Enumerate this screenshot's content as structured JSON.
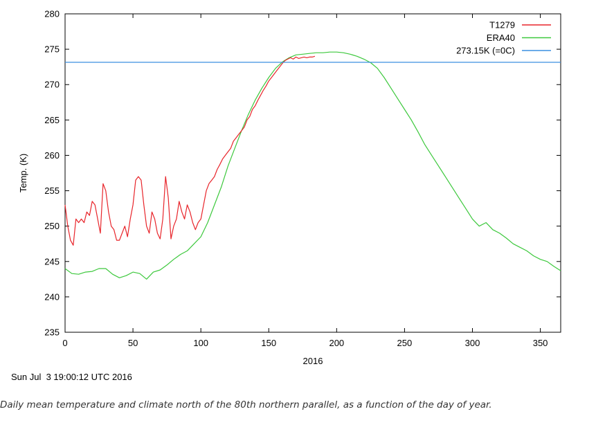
{
  "chart_data": {
    "type": "line",
    "title": "",
    "xlabel": "2016",
    "ylabel": "Temp. (K)",
    "xlim": [
      0,
      365
    ],
    "ylim": [
      235,
      280
    ],
    "x_ticks": [
      0,
      50,
      100,
      150,
      200,
      250,
      300,
      350
    ],
    "y_ticks": [
      235,
      240,
      245,
      250,
      255,
      260,
      265,
      270,
      275,
      280
    ],
    "legend_position": "top-right",
    "series": [
      {
        "name": "T1279",
        "color": "#e8242a",
        "x": [
          0,
          2,
          4,
          6,
          8,
          10,
          12,
          14,
          16,
          18,
          20,
          22,
          24,
          26,
          28,
          30,
          32,
          34,
          36,
          38,
          40,
          42,
          44,
          46,
          48,
          50,
          52,
          54,
          56,
          58,
          60,
          62,
          64,
          66,
          68,
          70,
          72,
          74,
          76,
          78,
          80,
          82,
          84,
          86,
          88,
          90,
          92,
          94,
          96,
          98,
          100,
          102,
          104,
          106,
          108,
          110,
          112,
          114,
          116,
          118,
          120,
          122,
          124,
          126,
          128,
          130,
          132,
          134,
          136,
          138,
          140,
          142,
          144,
          146,
          148,
          150,
          152,
          154,
          156,
          158,
          160,
          162,
          164,
          166,
          168,
          170,
          172,
          174,
          176,
          178,
          180,
          182,
          184
        ],
        "values": [
          253,
          250,
          248,
          247.3,
          251,
          250.5,
          251,
          250.5,
          252,
          251.5,
          253.5,
          253,
          251,
          249,
          256,
          255,
          252,
          250,
          249.5,
          248,
          248,
          249,
          250,
          248.5,
          251,
          253,
          256.5,
          257,
          256.5,
          253,
          250,
          249,
          252,
          251,
          249,
          248.2,
          251,
          257,
          254,
          248.2,
          250,
          251,
          253.5,
          252,
          251,
          253,
          252,
          250.5,
          249.5,
          250.5,
          251,
          253,
          255,
          256,
          256.5,
          257,
          258,
          258.7,
          259.5,
          260,
          260.5,
          261,
          262,
          262.5,
          263,
          263.5,
          264,
          265,
          265.5,
          266.5,
          267,
          267.8,
          268.5,
          269.2,
          269.8,
          270.5,
          271,
          271.5,
          272,
          272.5,
          273,
          273.4,
          273.6,
          273.8,
          273.6,
          273.9,
          273.7,
          273.8,
          273.9,
          273.8,
          273.9,
          273.9,
          274
        ]
      },
      {
        "name": "ERA40",
        "color": "#3cc83c",
        "x": [
          0,
          5,
          10,
          15,
          20,
          25,
          30,
          35,
          40,
          45,
          50,
          55,
          60,
          65,
          70,
          75,
          80,
          85,
          90,
          95,
          100,
          105,
          110,
          115,
          120,
          125,
          130,
          135,
          140,
          145,
          150,
          155,
          160,
          165,
          170,
          175,
          180,
          185,
          190,
          195,
          200,
          205,
          210,
          215,
          220,
          225,
          230,
          235,
          240,
          245,
          250,
          255,
          260,
          265,
          270,
          275,
          280,
          285,
          290,
          295,
          300,
          305,
          310,
          315,
          320,
          325,
          330,
          335,
          340,
          345,
          350,
          355,
          360,
          365
        ],
        "values": [
          244,
          243.3,
          243.2,
          243.5,
          243.6,
          244,
          244,
          243.2,
          242.7,
          243,
          243.5,
          243.3,
          242.5,
          243.5,
          243.8,
          244.5,
          245.3,
          246,
          246.5,
          247.5,
          248.5,
          250.5,
          253,
          255.5,
          258.5,
          261,
          263.5,
          265.8,
          267.8,
          269.5,
          271,
          272.3,
          273.2,
          273.8,
          274.2,
          274.3,
          274.4,
          274.5,
          274.5,
          274.6,
          274.6,
          274.5,
          274.3,
          274,
          273.6,
          273.1,
          272.3,
          271,
          269.5,
          268,
          266.5,
          265,
          263.3,
          261.5,
          260,
          258.5,
          257,
          255.5,
          254,
          252.5,
          251,
          250,
          250.5,
          249.5,
          249,
          248.3,
          247.5,
          247,
          246.5,
          245.8,
          245.3,
          245,
          244.3,
          243.7
        ]
      },
      {
        "name": "273.15K (=0C)",
        "color": "#3a8fe0",
        "x": [
          0,
          365
        ],
        "values": [
          273.15,
          273.15
        ]
      }
    ]
  },
  "timestamp": "Sun Jul  3 19:00:12 UTC 2016",
  "caption": "Daily mean temperature and climate north of the 80th northern parallel, as a function of the day of year."
}
